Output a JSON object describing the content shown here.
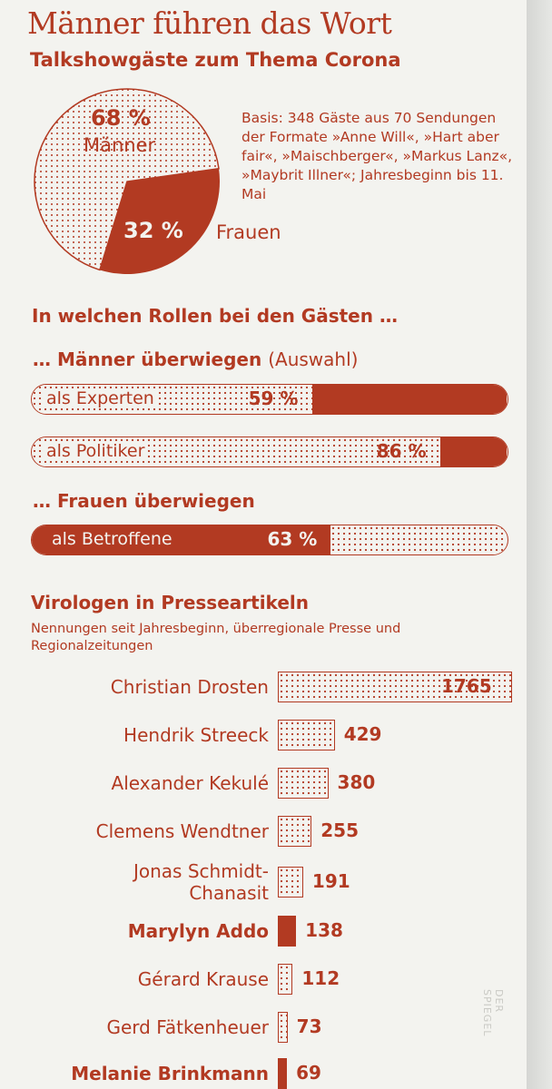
{
  "header": {
    "title": "Männer führen das Wort",
    "subtitle": "Talkshowgäste zum Thema Corona"
  },
  "chart_data": [
    {
      "type": "pie",
      "title": "Talkshowgäste zum Thema Corona",
      "slices": [
        {
          "label": "Männer",
          "value": 68,
          "display": "68 %"
        },
        {
          "label": "Frauen",
          "value": 32,
          "display": "32 %"
        }
      ],
      "note": "Basis: 348 Gäste aus 70 Sendungen der Formate »Anne Will«, »Hart aber fair«, »Maischberger«, »Markus Lanz«, »Maybrit Illner«; Jahresbeginn bis 11. Mai"
    },
    {
      "type": "bar",
      "title": "In welchen Rollen bei den Gästen …",
      "groups": [
        {
          "heading": "… Männer überwiegen",
          "heading_note": "(Auswahl)",
          "items": [
            {
              "label": "als Experten",
              "men_percent": 59,
              "display": "59 %"
            },
            {
              "label": "als Politiker",
              "men_percent": 86,
              "display": "86 %"
            }
          ]
        },
        {
          "heading": "… Frauen überwiegen",
          "items": [
            {
              "label": "als Betroffene",
              "women_percent": 63,
              "display": "63 %"
            }
          ]
        }
      ]
    },
    {
      "type": "bar",
      "title": "Virologen in Presseartikeln",
      "subtitle": "Nennungen seit Jahresbeginn, überregionale Presse und Regionalzeitungen",
      "categories": [
        "Christian Drosten",
        "Hendrik Streeck",
        "Alexander Kekulé",
        "Clemens Wendtner",
        "Jonas Schmidt-Chanasit",
        "Marylyn Addo",
        "Gérard Krause",
        "Gerd Fätkenheuer",
        "Melanie Brinkmann"
      ],
      "name_lines": [
        [
          "Christian Drosten"
        ],
        [
          "Hendrik Streeck"
        ],
        [
          "Alexander Kekulé"
        ],
        [
          "Clemens Wendtner"
        ],
        [
          "Jonas Schmidt-",
          "Chanasit"
        ],
        [
          "Marylyn Addo"
        ],
        [
          "Gérard Krause"
        ],
        [
          "Gerd Fätkenheuer"
        ],
        [
          "Melanie Brinkmann"
        ]
      ],
      "values": [
        1765,
        429,
        380,
        255,
        191,
        138,
        112,
        73,
        69
      ],
      "female": [
        false,
        false,
        false,
        false,
        false,
        true,
        false,
        false,
        true
      ]
    }
  ],
  "colors": {
    "accent": "#b23a22",
    "paper": "#f3f3ef"
  },
  "watermark": "DER SPIEGEL"
}
